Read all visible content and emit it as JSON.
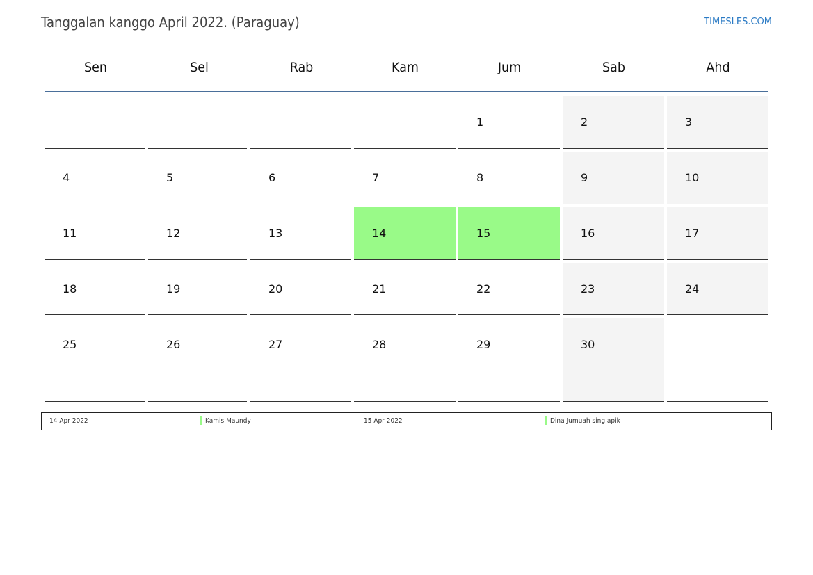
{
  "title": "Tanggalan kanggo April 2022. (Paraguay)",
  "site": "TIMESLES.COM",
  "colors": {
    "holiday": "#99fa88",
    "weekend": "#f4f4f4",
    "header_line": "#4a6f9a"
  },
  "weekdays": [
    "Sen",
    "Sel",
    "Rab",
    "Kam",
    "Jum",
    "Sab",
    "Ahd"
  ],
  "weeks": [
    [
      "",
      "",
      "",
      "",
      "1",
      "2",
      "3"
    ],
    [
      "4",
      "5",
      "6",
      "7",
      "8",
      "9",
      "10"
    ],
    [
      "11",
      "12",
      "13",
      "14",
      "15",
      "16",
      "17"
    ],
    [
      "18",
      "19",
      "20",
      "21",
      "22",
      "23",
      "24"
    ],
    [
      "25",
      "26",
      "27",
      "28",
      "29",
      "30",
      ""
    ]
  ],
  "holidays": [
    "14",
    "15"
  ],
  "legend": [
    {
      "date": "14 Apr 2022",
      "name": "Kamis Maundy"
    },
    {
      "date": "15 Apr 2022",
      "name": "Dina Jumuah sing apik"
    }
  ]
}
